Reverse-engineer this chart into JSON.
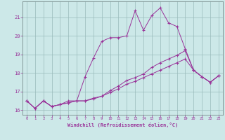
{
  "xlabel": "Windchill (Refroidissement éolien,°C)",
  "x_values": [
    0,
    1,
    2,
    3,
    4,
    5,
    6,
    7,
    8,
    9,
    10,
    11,
    12,
    13,
    14,
    15,
    16,
    17,
    18,
    19,
    20,
    21,
    22,
    23
  ],
  "line1_y": [
    16.5,
    16.1,
    16.5,
    16.2,
    16.3,
    16.5,
    16.5,
    17.8,
    18.8,
    19.7,
    19.9,
    19.9,
    20.0,
    21.35,
    20.3,
    21.1,
    21.5,
    20.7,
    20.5,
    19.3,
    18.15,
    17.8,
    17.5,
    17.85
  ],
  "line2_y": [
    16.5,
    16.1,
    16.5,
    16.2,
    16.3,
    16.4,
    16.5,
    16.5,
    16.6,
    16.75,
    17.05,
    17.3,
    17.6,
    17.75,
    17.95,
    18.3,
    18.55,
    18.75,
    18.95,
    19.2,
    18.15,
    17.8,
    17.5,
    17.85
  ],
  "line3_y": [
    16.5,
    16.1,
    16.5,
    16.2,
    16.3,
    16.4,
    16.5,
    16.5,
    16.65,
    16.75,
    16.95,
    17.15,
    17.4,
    17.55,
    17.75,
    17.95,
    18.15,
    18.35,
    18.55,
    18.75,
    18.15,
    17.8,
    17.5,
    17.85
  ],
  "line_color": "#993399",
  "bg_color": "#cce8e8",
  "grid_color": "#99bbbb",
  "ylim": [
    15.75,
    21.85
  ],
  "yticks": [
    16,
    17,
    18,
    19,
    20,
    21
  ]
}
